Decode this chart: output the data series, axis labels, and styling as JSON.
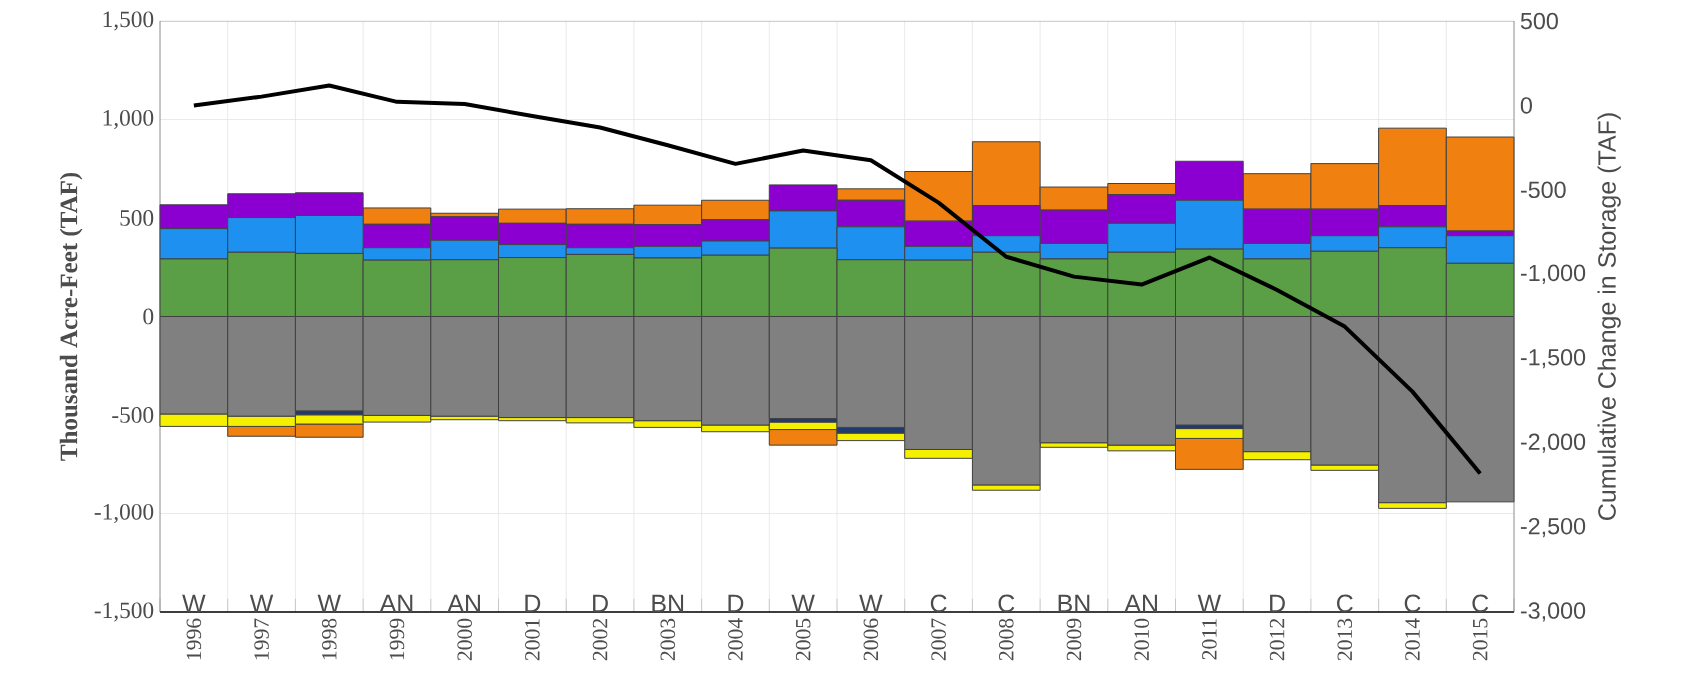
{
  "chart_data": {
    "type": "bar",
    "stacked": true,
    "ylabel": "Thousand  Acre-Feet (TAF)",
    "y2label": "Cumulative Change in Storage (TAF)",
    "categories": [
      "1996",
      "1997",
      "1998",
      "1999",
      "2000",
      "2001",
      "2002",
      "2003",
      "2004",
      "2005",
      "2006",
      "2007",
      "2008",
      "2009",
      "2010",
      "2011",
      "2012",
      "2013",
      "2014",
      "2015"
    ],
    "ylim": [
      -1500,
      1500
    ],
    "yticks": [
      {
        "value": -1500,
        "label": "-1,500"
      },
      {
        "value": -1000,
        "label": "-1,000"
      },
      {
        "value": -500,
        "label": "-500"
      },
      0,
      500,
      {
        "value": 1000,
        "label": "1,000"
      },
      {
        "value": 1500,
        "label": "1,500"
      }
    ],
    "y2lim": [
      -3000,
      500
    ],
    "y2ticks": [
      {
        "value": -3000,
        "label": "-3,000"
      },
      {
        "value": -2500,
        "label": "-2,500"
      },
      {
        "value": -2000,
        "label": "-2,000"
      },
      {
        "value": -1500,
        "label": "-1,500"
      },
      {
        "value": -1000,
        "label": "-1,000"
      },
      -500,
      0,
      500
    ],
    "grid": true,
    "series": [
      {
        "color": "#5a9e46",
        "values": [
          292,
          326,
          320,
          286,
          288,
          299,
          315,
          297,
          311,
          347,
          288,
          286,
          326,
          292,
          326,
          342,
          292,
          331,
          349,
          270
        ]
      },
      {
        "color": "#1e90f0",
        "values": [
          154,
          176,
          193,
          63,
          99,
          66,
          34,
          59,
          72,
          189,
          167,
          70,
          84,
          79,
          147,
          248,
          79,
          79,
          106,
          140
        ]
      },
      {
        "color": "#8b00d0",
        "values": [
          121,
          121,
          115,
          119,
          119,
          108,
          119,
          110,
          108,
          132,
          135,
          128,
          153,
          169,
          146,
          198,
          174,
          135,
          108,
          24
        ]
      },
      {
        "color": "#808080",
        "values": [
          -495,
          -506,
          -479,
          -502,
          -506,
          -513,
          -513,
          -529,
          -551,
          -518,
          -563,
          -675,
          -855,
          -641,
          -653,
          -551,
          -686,
          -754,
          -945,
          -941
        ]
      },
      {
        "color": "#1f3a6e",
        "values": [
          null,
          null,
          -20,
          null,
          null,
          null,
          null,
          null,
          null,
          -18,
          -29,
          null,
          null,
          null,
          null,
          -18,
          null,
          null,
          null,
          null
        ]
      },
      {
        "color": "#f5f000",
        "values": [
          -63,
          -52,
          -47,
          -34,
          -18,
          -16,
          -27,
          -34,
          -34,
          -38,
          -38,
          -45,
          -27,
          -23,
          -29,
          -50,
          -41,
          -27,
          -29,
          null
        ]
      },
      {
        "color": "#f08010",
        "values": [
          null,
          -50,
          -67,
          83,
          18,
          72,
          79,
          99,
          99,
          -79,
          58,
          252,
          324,
          117,
          56,
          -157,
          180,
          231,
          393,
          477
        ]
      },
      {
        "type": "line",
        "axis": "y2",
        "color": "#000000",
        "values": [
          0,
          52,
          118,
          21,
          8,
          -63,
          -131,
          -236,
          -346,
          -267,
          -325,
          -576,
          -896,
          -1014,
          -1061,
          -901,
          -1093,
          -1310,
          -1695,
          -2180
        ]
      }
    ],
    "annotations": [
      "W",
      "W",
      "W",
      "AN",
      "AN",
      "D",
      "D",
      "BN",
      "D",
      "W",
      "W",
      "C",
      "C",
      "BN",
      "AN",
      "W",
      "D",
      "C",
      "C",
      "C"
    ]
  }
}
